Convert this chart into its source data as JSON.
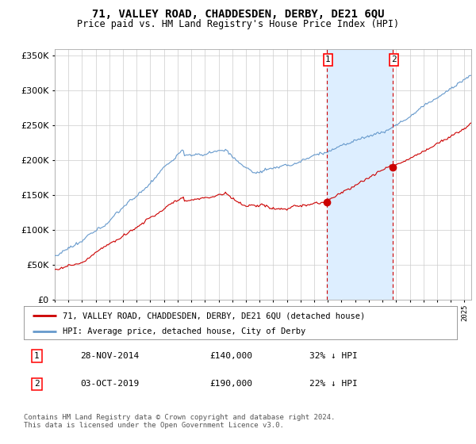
{
  "title": "71, VALLEY ROAD, CHADDESDEN, DERBY, DE21 6QU",
  "subtitle": "Price paid vs. HM Land Registry's House Price Index (HPI)",
  "legend_line1": "71, VALLEY ROAD, CHADDESDEN, DERBY, DE21 6QU (detached house)",
  "legend_line2": "HPI: Average price, detached house, City of Derby",
  "footer": "Contains HM Land Registry data © Crown copyright and database right 2024.\nThis data is licensed under the Open Government Licence v3.0.",
  "transaction1_date": "28-NOV-2014",
  "transaction1_price": 140000,
  "transaction1_pct": "32% ↓ HPI",
  "transaction1_year": 2014.9,
  "transaction2_date": "03-OCT-2019",
  "transaction2_price": 190000,
  "transaction2_pct": "22% ↓ HPI",
  "transaction2_year": 2019.75,
  "red_line_color": "#cc0000",
  "blue_line_color": "#6699cc",
  "shade_color": "#ddeeff",
  "ylim": [
    0,
    360000
  ],
  "xlim_start": 1995,
  "xlim_end": 2025.5,
  "background_color": "#ffffff",
  "grid_color": "#cccccc"
}
